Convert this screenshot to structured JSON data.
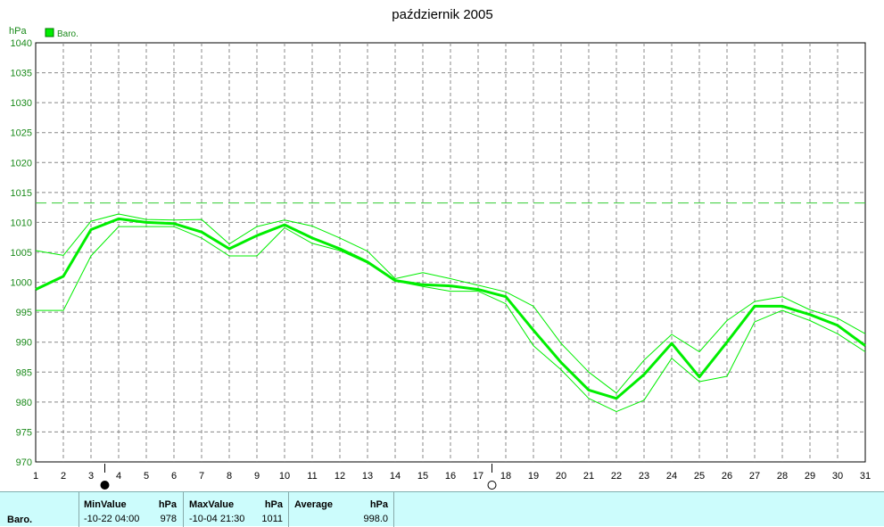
{
  "chart_data": {
    "type": "line",
    "title": "październik 2005",
    "ylabel": "hPa",
    "ylim": [
      970,
      1040
    ],
    "yticks": [
      970,
      975,
      980,
      985,
      990,
      995,
      1000,
      1005,
      1010,
      1015,
      1020,
      1025,
      1030,
      1035,
      1040
    ],
    "x": [
      1,
      2,
      3,
      4,
      5,
      6,
      7,
      8,
      9,
      10,
      11,
      12,
      13,
      14,
      15,
      16,
      17,
      18,
      19,
      20,
      21,
      22,
      23,
      24,
      25,
      26,
      27,
      28,
      29,
      30,
      31
    ],
    "grid": true,
    "legend": "top-left",
    "reference_line": 1013.25,
    "series": [
      {
        "name": "Baro.",
        "role": "average",
        "values": [
          998.8,
          1001.0,
          1008.8,
          1010.6,
          1010.0,
          1009.8,
          1008.4,
          1005.6,
          1007.8,
          1009.6,
          1007.4,
          1005.6,
          1003.4,
          1000.3,
          999.6,
          999.4,
          998.8,
          997.6,
          992.0,
          986.6,
          982.0,
          980.6,
          984.6,
          989.8,
          984.2,
          990.0,
          996.0,
          996.0,
          994.6,
          992.8,
          989.4
        ]
      },
      {
        "role": "max",
        "values": [
          1005.3,
          1004.5,
          1010.2,
          1011.4,
          1010.5,
          1010.4,
          1010.5,
          1006.4,
          1009.3,
          1010.4,
          1009.4,
          1007.4,
          1005.2,
          1000.6,
          1001.6,
          1000.6,
          999.5,
          998.4,
          996.0,
          989.8,
          985.0,
          981.5,
          987.0,
          991.3,
          988.4,
          993.6,
          996.8,
          997.6,
          995.4,
          994.0,
          991.4
        ]
      },
      {
        "role": "min",
        "values": [
          995.3,
          995.3,
          1004.4,
          1009.3,
          1009.3,
          1009.3,
          1007.4,
          1004.4,
          1004.4,
          1009.1,
          1006.5,
          1005.3,
          1003.2,
          1000.2,
          999.3,
          998.5,
          998.5,
          996.4,
          989.4,
          985.4,
          980.6,
          978.4,
          980.3,
          987.3,
          983.4,
          984.3,
          993.4,
          995.3,
          993.6,
          991.4,
          988.4
        ]
      }
    ],
    "markers": [
      {
        "type": "filled-circle",
        "x": 3.5
      },
      {
        "type": "hollow-circle",
        "x": 17.5
      }
    ],
    "color": "#00ee00",
    "refcolor": "#33cc33"
  },
  "stats": {
    "row_label": "Baro.",
    "min_header": "MinValue",
    "min_unit": "hPa",
    "min_date": "-10-22  04:00",
    "min_value": "978",
    "max_header": "MaxValue",
    "max_unit": "hPa",
    "max_date": "-10-04  21:30",
    "max_value": "1011",
    "avg_header": "Average",
    "avg_unit": "hPa",
    "avg_value": "998.0"
  }
}
